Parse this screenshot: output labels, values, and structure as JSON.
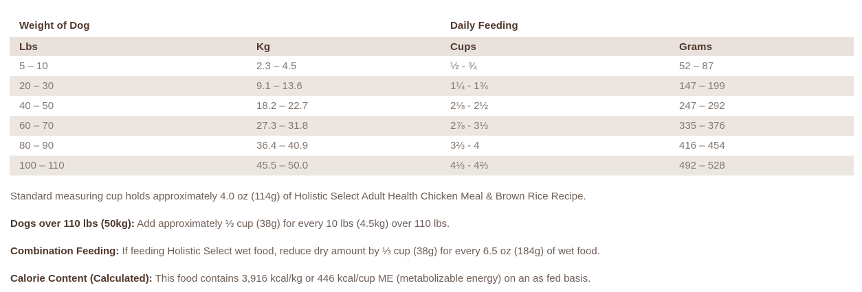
{
  "section_titles": {
    "weight": "Weight of Dog",
    "feeding": "Daily Feeding"
  },
  "table": {
    "columns": [
      "Lbs",
      "Kg",
      "Cups",
      "Grams"
    ],
    "rows": [
      [
        "5 – 10",
        "2.3 – 4.5",
        "½ - ¾",
        "52 – 87"
      ],
      [
        "20 – 30",
        "9.1 – 13.6",
        "1¼ - 1¾",
        "147 – 199"
      ],
      [
        "40 – 50",
        "18.2 – 22.7",
        "2⅛ - 2½",
        "247 – 292"
      ],
      [
        "60 – 70",
        "27.3 – 31.8",
        "2⅞ - 3⅓",
        "335 – 376"
      ],
      [
        "80 – 90",
        "36.4 – 40.9",
        "3⅔ - 4",
        "416 – 454"
      ],
      [
        "100 – 110",
        "45.5 – 50.0",
        "4⅓ - 4⅔",
        "492 – 528"
      ]
    ]
  },
  "notes": [
    {
      "lead": "",
      "text": "Standard measuring cup holds approximately 4.0 oz (114g) of Holistic Select Adult Health Chicken Meal & Brown Rice Recipe."
    },
    {
      "lead": "Dogs over 110 lbs (50kg):",
      "text": " Add approximately ⅓ cup (38g) for every 10 lbs (4.5kg) over 110 lbs."
    },
    {
      "lead": "Combination Feeding:",
      "text": " If feeding Holistic Select wet food, reduce dry amount by ⅓ cup (38g) for every 6.5 oz (184g) of wet food."
    },
    {
      "lead": "Calorie Content (Calculated):",
      "text": " This food contains 3,916 kcal/kg or 446 kcal/cup ME (metabolizable energy) on an as fed basis."
    }
  ],
  "colors": {
    "heading_text": "#4f382c",
    "table_header_bg": "#e9e2dc",
    "row_stripe_bg": "#ece6e1",
    "data_text": "#857870",
    "note_text": "#6e6058"
  }
}
